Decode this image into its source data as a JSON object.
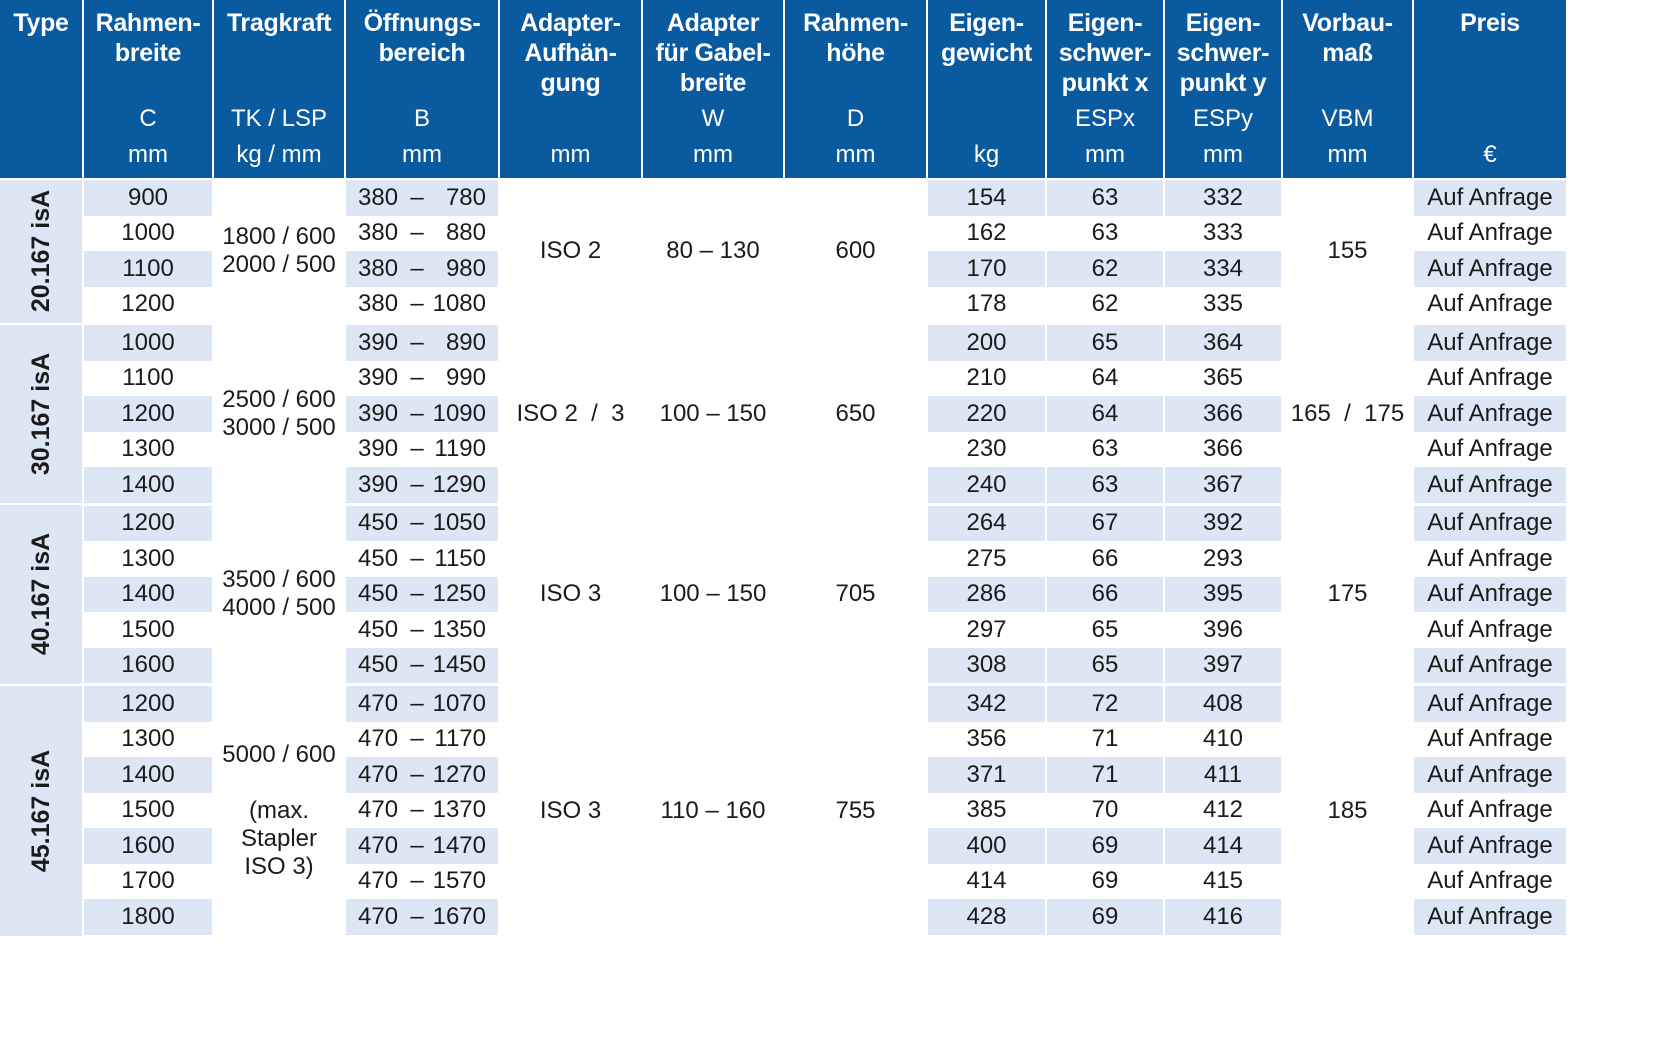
{
  "headers": [
    {
      "title": "Type",
      "symbol": "",
      "unit": ""
    },
    {
      "title": "Rahmen-\nbreite",
      "symbol": "C",
      "unit": "mm"
    },
    {
      "title": "Tragkraft",
      "symbol": "TK / LSP",
      "unit": "kg / mm"
    },
    {
      "title": "Öffnungs-\nbereich",
      "symbol": "B",
      "unit": "mm"
    },
    {
      "title": "Adapter-\nAufhän-\ngung",
      "symbol": "",
      "unit": "mm"
    },
    {
      "title": "Adapter\nfür Gabel-\nbreite",
      "symbol": "W",
      "unit": "mm"
    },
    {
      "title": "Rahmen-\nhöhe",
      "symbol": "D",
      "unit": "mm"
    },
    {
      "title": "Eigen-\ngewicht",
      "symbol": "",
      "unit": "kg"
    },
    {
      "title": "Eigen-\nschwer-\npunkt x",
      "symbol": "ESPx",
      "unit": "mm"
    },
    {
      "title": "Eigen-\nschwer-\npunkt y",
      "symbol": "ESPy",
      "unit": "mm"
    },
    {
      "title": "Vorbau-\nmaß",
      "symbol": "VBM",
      "unit": "mm"
    },
    {
      "title": "Preis",
      "symbol": "",
      "unit": "€"
    }
  ],
  "groups": [
    {
      "type": "20.167 isA",
      "tragkraft": "1800 / 600\n2000 / 500",
      "adapter": "ISO 2",
      "gabel": "80 – 130",
      "hoehe": "600",
      "vbm": "155",
      "rows": [
        {
          "c": "900",
          "b1": "380",
          "b2": "780",
          "kg": "154",
          "espx": "63",
          "espy": "332",
          "preis": "Auf Anfrage"
        },
        {
          "c": "1000",
          "b1": "380",
          "b2": "880",
          "kg": "162",
          "espx": "63",
          "espy": "333",
          "preis": "Auf Anfrage"
        },
        {
          "c": "1100",
          "b1": "380",
          "b2": "980",
          "kg": "170",
          "espx": "62",
          "espy": "334",
          "preis": "Auf Anfrage"
        },
        {
          "c": "1200",
          "b1": "380",
          "b2": "1080",
          "kg": "178",
          "espx": "62",
          "espy": "335",
          "preis": "Auf Anfrage"
        }
      ]
    },
    {
      "type": "30.167 isA",
      "tragkraft": "2500 / 600\n3000 / 500",
      "adapter": "ISO 2  /  3",
      "gabel": "100 – 150",
      "hoehe": "650",
      "vbm": "165  /  175",
      "rows": [
        {
          "c": "1000",
          "b1": "390",
          "b2": "890",
          "kg": "200",
          "espx": "65",
          "espy": "364",
          "preis": "Auf Anfrage"
        },
        {
          "c": "1100",
          "b1": "390",
          "b2": "990",
          "kg": "210",
          "espx": "64",
          "espy": "365",
          "preis": "Auf Anfrage"
        },
        {
          "c": "1200",
          "b1": "390",
          "b2": "1090",
          "kg": "220",
          "espx": "64",
          "espy": "366",
          "preis": "Auf Anfrage"
        },
        {
          "c": "1300",
          "b1": "390",
          "b2": "1190",
          "kg": "230",
          "espx": "63",
          "espy": "366",
          "preis": "Auf Anfrage"
        },
        {
          "c": "1400",
          "b1": "390",
          "b2": "1290",
          "kg": "240",
          "espx": "63",
          "espy": "367",
          "preis": "Auf Anfrage"
        }
      ]
    },
    {
      "type": "40.167 isA",
      "tragkraft": "3500 / 600\n4000 / 500",
      "adapter": "ISO 3",
      "gabel": "100 – 150",
      "hoehe": "705",
      "vbm": "175",
      "rows": [
        {
          "c": "1200",
          "b1": "450",
          "b2": "1050",
          "kg": "264",
          "espx": "67",
          "espy": "392",
          "preis": "Auf Anfrage"
        },
        {
          "c": "1300",
          "b1": "450",
          "b2": "1150",
          "kg": "275",
          "espx": "66",
          "espy": "293",
          "preis": "Auf Anfrage"
        },
        {
          "c": "1400",
          "b1": "450",
          "b2": "1250",
          "kg": "286",
          "espx": "66",
          "espy": "395",
          "preis": "Auf Anfrage"
        },
        {
          "c": "1500",
          "b1": "450",
          "b2": "1350",
          "kg": "297",
          "espx": "65",
          "espy": "396",
          "preis": "Auf Anfrage"
        },
        {
          "c": "1600",
          "b1": "450",
          "b2": "1450",
          "kg": "308",
          "espx": "65",
          "espy": "397",
          "preis": "Auf Anfrage"
        }
      ]
    },
    {
      "type": "45.167 isA",
      "tragkraft": "5000 / 600\n\n(max.\nStapler\nISO 3)",
      "adapter": "ISO 3",
      "gabel": "110 – 160",
      "hoehe": "755",
      "vbm": "185",
      "rows": [
        {
          "c": "1200",
          "b1": "470",
          "b2": "1070",
          "kg": "342",
          "espx": "72",
          "espy": "408",
          "preis": "Auf Anfrage"
        },
        {
          "c": "1300",
          "b1": "470",
          "b2": "1170",
          "kg": "356",
          "espx": "71",
          "espy": "410",
          "preis": "Auf Anfrage"
        },
        {
          "c": "1400",
          "b1": "470",
          "b2": "1270",
          "kg": "371",
          "espx": "71",
          "espy": "411",
          "preis": "Auf Anfrage"
        },
        {
          "c": "1500",
          "b1": "470",
          "b2": "1370",
          "kg": "385",
          "espx": "70",
          "espy": "412",
          "preis": "Auf Anfrage"
        },
        {
          "c": "1600",
          "b1": "470",
          "b2": "1470",
          "kg": "400",
          "espx": "69",
          "espy": "414",
          "preis": "Auf Anfrage"
        },
        {
          "c": "1700",
          "b1": "470",
          "b2": "1570",
          "kg": "414",
          "espx": "69",
          "espy": "415",
          "preis": "Auf Anfrage"
        },
        {
          "c": "1800",
          "b1": "470",
          "b2": "1670",
          "kg": "428",
          "espx": "69",
          "espy": "416",
          "preis": "Auf Anfrage"
        }
      ]
    }
  ],
  "range_dash": "–"
}
